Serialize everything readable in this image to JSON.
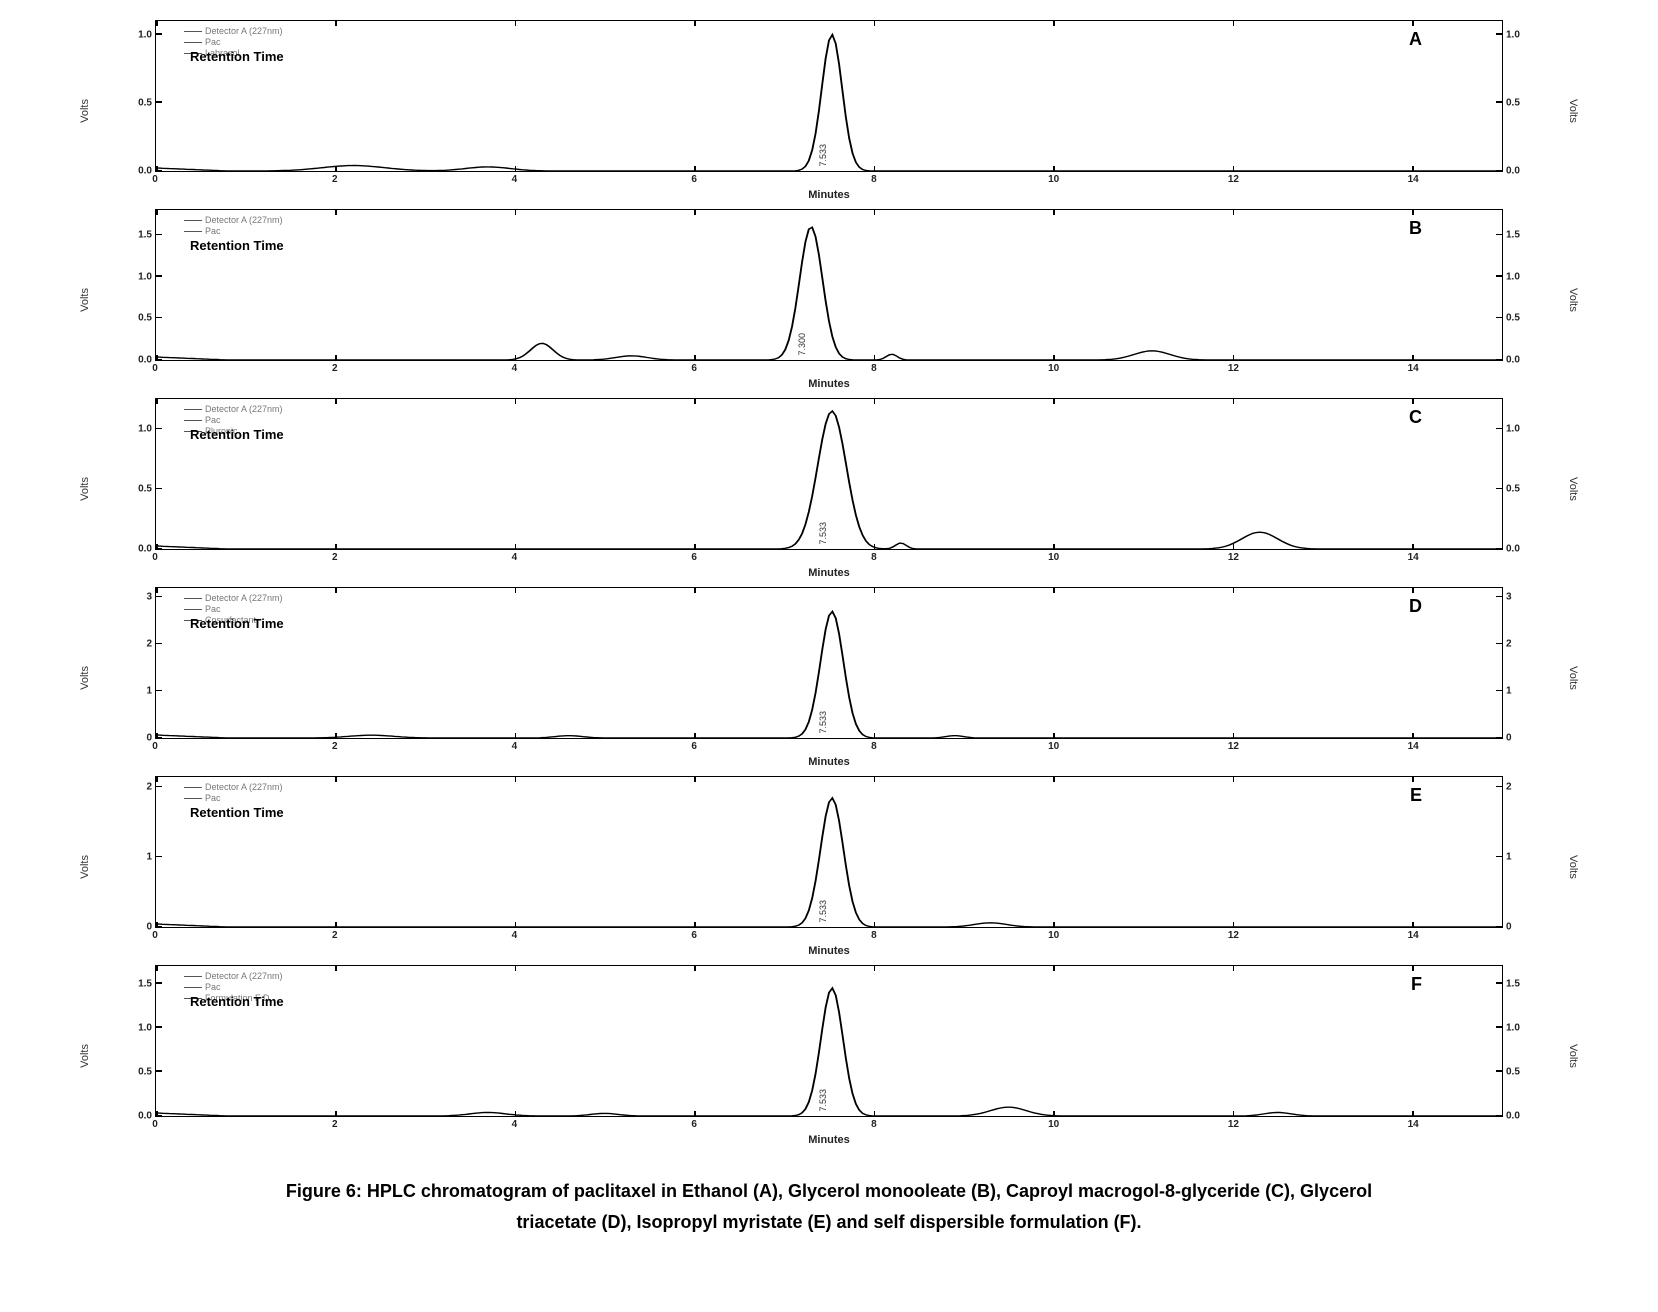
{
  "figure": {
    "caption_line1": "Figure 6: HPLC chromatogram of paclitaxel in Ethanol (A), Glycerol monooleate (B), Caproyl macrogol-8-glyceride (C), Glycerol",
    "caption_line2": "triacetate (D), Isopropyl myristate (E) and self dispersible formulation (F).",
    "x_axis": {
      "label": "Minutes",
      "min": 0,
      "max": 15,
      "ticks": [
        0,
        2,
        4,
        6,
        8,
        10,
        12,
        14
      ]
    },
    "y_label": "Volts",
    "colors": {
      "background": "#ffffff",
      "trace": "#000000",
      "border": "#000000",
      "grid": "#d0d0d0",
      "text": "#222222",
      "legend_text": "#888888"
    },
    "panels": [
      {
        "letter": "A",
        "retention_text": "Retention Time",
        "legend": [
          "Detector A (227nm)",
          "Pac",
          "Labrasol"
        ],
        "y_ticks": [
          0.0,
          0.5,
          1.0
        ],
        "y_max": 1.1,
        "peaks": [
          {
            "rt": 7.533,
            "height": 1.0,
            "width": 0.25,
            "label": "7.533"
          }
        ],
        "bumps": [
          {
            "rt": 2.2,
            "height": 0.04,
            "width": 0.7
          },
          {
            "rt": 3.7,
            "height": 0.03,
            "width": 0.5
          }
        ]
      },
      {
        "letter": "B",
        "retention_text": "Retention Time",
        "legend": [
          "Detector A (227nm)",
          "Pac"
        ],
        "y_ticks": [
          0.0,
          0.5,
          1.0,
          1.5
        ],
        "y_max": 1.8,
        "peaks": [
          {
            "rt": 7.3,
            "height": 1.6,
            "width": 0.28,
            "label": "7.300"
          }
        ],
        "bumps": [
          {
            "rt": 4.3,
            "height": 0.2,
            "width": 0.25
          },
          {
            "rt": 5.3,
            "height": 0.05,
            "width": 0.35
          },
          {
            "rt": 8.2,
            "height": 0.07,
            "width": 0.12
          },
          {
            "rt": 11.1,
            "height": 0.11,
            "width": 0.4
          }
        ]
      },
      {
        "letter": "C",
        "retention_text": "Retention Time",
        "legend": [
          "Detector A (227nm)",
          "Pac",
          "Pluronic"
        ],
        "y_ticks": [
          0.0,
          0.5,
          1.0
        ],
        "y_max": 1.25,
        "peaks": [
          {
            "rt": 7.533,
            "height": 1.15,
            "width": 0.35,
            "label": "7.533"
          }
        ],
        "bumps": [
          {
            "rt": 8.3,
            "height": 0.05,
            "width": 0.12
          },
          {
            "rt": 12.3,
            "height": 0.14,
            "width": 0.4
          }
        ]
      },
      {
        "letter": "D",
        "retention_text": "Retention Time",
        "legend": [
          "Detector A (227nm)",
          "Pac",
          "Cosurfactant"
        ],
        "y_ticks": [
          0,
          1,
          2,
          3
        ],
        "y_max": 3.2,
        "peaks": [
          {
            "rt": 7.533,
            "height": 2.7,
            "width": 0.28,
            "label": "7.533"
          }
        ],
        "bumps": [
          {
            "rt": 2.4,
            "height": 0.06,
            "width": 0.5
          },
          {
            "rt": 4.6,
            "height": 0.05,
            "width": 0.3
          },
          {
            "rt": 8.9,
            "height": 0.05,
            "width": 0.2
          }
        ]
      },
      {
        "letter": "E",
        "retention_text": "Retention Time",
        "legend": [
          "Detector A (227nm)",
          "Pac"
        ],
        "y_ticks": [
          0,
          1,
          2
        ],
        "y_max": 2.15,
        "peaks": [
          {
            "rt": 7.533,
            "height": 1.85,
            "width": 0.28,
            "label": "7.533"
          }
        ],
        "bumps": [
          {
            "rt": 9.3,
            "height": 0.06,
            "width": 0.35
          }
        ]
      },
      {
        "letter": "F",
        "retention_text": "Retention Time",
        "legend": [
          "Detector A (227nm)",
          "Pac",
          "Formulation F D"
        ],
        "y_ticks": [
          0.0,
          0.5,
          1.0,
          1.5
        ],
        "y_max": 1.7,
        "peaks": [
          {
            "rt": 7.533,
            "height": 1.45,
            "width": 0.27,
            "label": "7.533"
          }
        ],
        "bumps": [
          {
            "rt": 3.7,
            "height": 0.04,
            "width": 0.4
          },
          {
            "rt": 5.0,
            "height": 0.03,
            "width": 0.3
          },
          {
            "rt": 9.5,
            "height": 0.1,
            "width": 0.4
          },
          {
            "rt": 12.5,
            "height": 0.04,
            "width": 0.3
          }
        ]
      }
    ]
  }
}
